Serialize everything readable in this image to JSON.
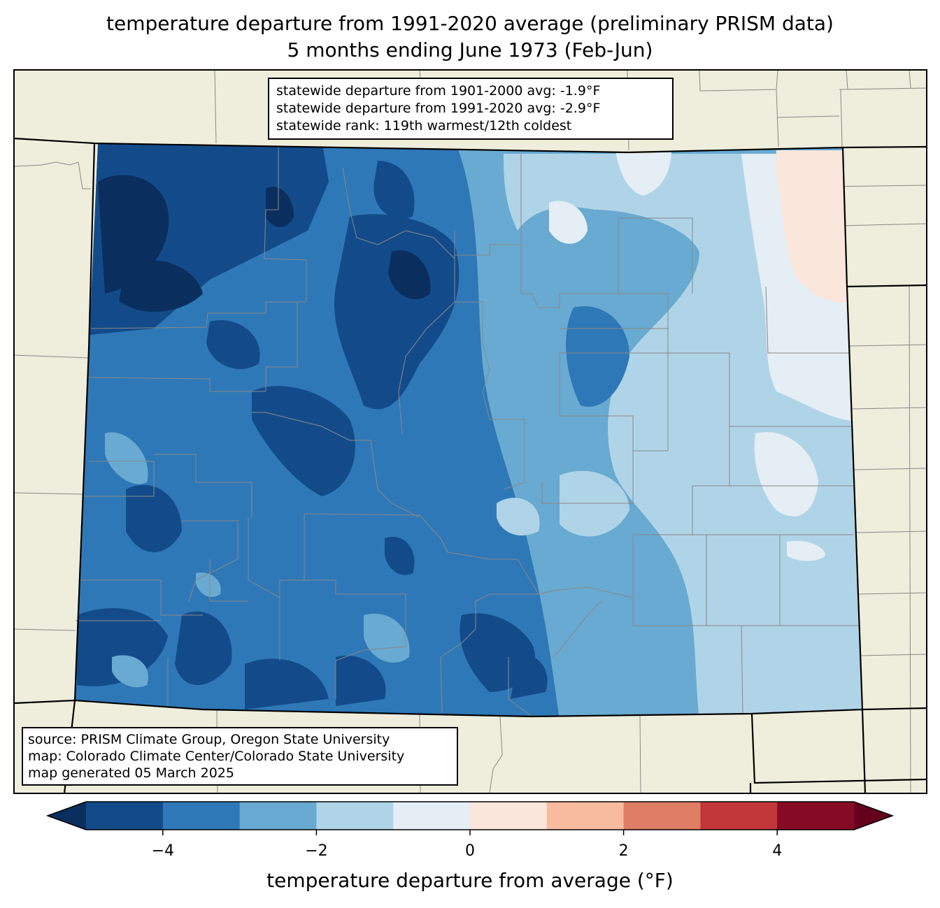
{
  "title": {
    "line1": "temperature departure from 1991-2020 average (preliminary PRISM data)",
    "line2": "5 months ending June 1973 (Feb-Jun)"
  },
  "stats": {
    "line1": "statewide departure from 1901-2000 avg: -1.9°F",
    "line2": "statewide departure from 1991-2020 avg: -2.9°F",
    "line3": "statewide rank: 119th warmest/12th coldest"
  },
  "source": {
    "line1": "source: PRISM Climate Group, Oregon State University",
    "line2": "map: Colorado Climate Center/Colorado State University",
    "line3": "map generated 05 March 2025"
  },
  "colorbar": {
    "label": "temperature departure from average (°F)",
    "bounds": [
      -5,
      -4,
      -3,
      -2,
      -1,
      0,
      1,
      2,
      3,
      4,
      5
    ],
    "colors": [
      "#134b8a",
      "#2e78b7",
      "#68aad1",
      "#b0d4e7",
      "#e4eef4",
      "#fbe6dc",
      "#f8bba0",
      "#e07e65",
      "#c1373a",
      "#870a24"
    ],
    "under_color": "#0a2e5e",
    "over_color": "#65001d",
    "ticks": [
      {
        "value": -4,
        "label": "−4"
      },
      {
        "value": -2,
        "label": "−2"
      },
      {
        "value": 0,
        "label": "0"
      },
      {
        "value": 2,
        "label": "2"
      },
      {
        "value": 4,
        "label": "4"
      }
    ]
  },
  "map_colors": {
    "background": "#efeedc",
    "state_border": "#000000",
    "county_border": "#888888"
  }
}
